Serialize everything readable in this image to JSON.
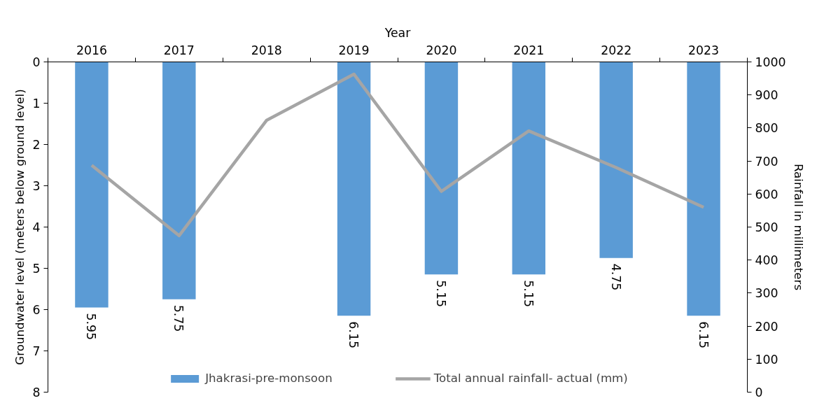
{
  "chart_data": {
    "type": "bar",
    "xlabel": "Year",
    "ylabel": "Groundwater level (meters below ground level)",
    "y2label": "Rainfall in millimeters",
    "categories": [
      "2016",
      "2017",
      "2018",
      "2019",
      "2020",
      "2021",
      "2022",
      "2023"
    ],
    "ylim": [
      8,
      0
    ],
    "yticks": [
      0,
      1,
      2,
      3,
      4,
      5,
      6,
      7,
      8
    ],
    "y2lim": [
      0,
      1000
    ],
    "y2ticks": [
      0,
      100,
      200,
      300,
      400,
      500,
      600,
      700,
      800,
      900,
      1000
    ],
    "series": [
      {
        "name": "Jhakrasi-pre-monsoon",
        "color": "#5b9bd5",
        "values": [
          5.95,
          5.75,
          null,
          6.15,
          5.15,
          5.15,
          4.75,
          6.15
        ],
        "value_labels": [
          "5.95",
          "5.75",
          null,
          "6.15",
          "5.15",
          "5.15",
          "4.75",
          "6.15"
        ]
      },
      {
        "name": "Total annual rainfall- actual (mm)",
        "type": "line",
        "axis": "y2",
        "color": "#a5a5a5",
        "values": [
          687,
          474,
          823,
          963,
          608,
          791,
          680,
          560
        ]
      }
    ],
    "grid": false,
    "legend": "bottom"
  }
}
